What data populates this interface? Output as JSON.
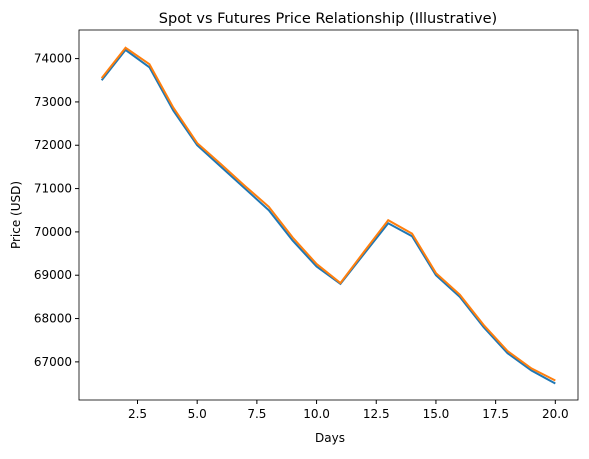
{
  "chart_data": {
    "type": "line",
    "title": "Spot vs Futures Price Relationship (Illustrative)",
    "x_label": "Days",
    "y_label": "Price (USD)",
    "x": [
      1,
      2,
      3,
      4,
      5,
      6,
      7,
      8,
      9,
      10,
      11,
      12,
      13,
      14,
      15,
      16,
      17,
      18,
      19,
      20
    ],
    "series": [
      {
        "color": "#1f77b4",
        "values": [
          73500,
          74200,
          73800,
          72800,
          72000,
          71500,
          71000,
          70500,
          69800,
          69200,
          68800,
          69500,
          70200,
          69900,
          69000,
          68500,
          67800,
          67200,
          66800,
          66500
        ]
      },
      {
        "color": "#ff7f0e",
        "values": [
          73550,
          74250,
          73870,
          72870,
          72050,
          71560,
          71060,
          70580,
          69870,
          69260,
          68820,
          69550,
          70270,
          69960,
          69050,
          68550,
          67850,
          67250,
          66850,
          66570
        ]
      }
    ],
    "xlim": [
      0.05,
      20.95
    ],
    "xticks": [
      2.5,
      {
        "value": 5,
        "label": "5.0"
      },
      7.5,
      {
        "value": 10,
        "label": "10.0"
      },
      12.5,
      {
        "value": 15,
        "label": "15.0"
      },
      17.5,
      {
        "value": 20,
        "label": "20.0"
      }
    ],
    "ylim": [
      66120,
      74660
    ],
    "yticks": [
      67000,
      68000,
      69000,
      70000,
      71000,
      72000,
      73000,
      74000
    ]
  }
}
